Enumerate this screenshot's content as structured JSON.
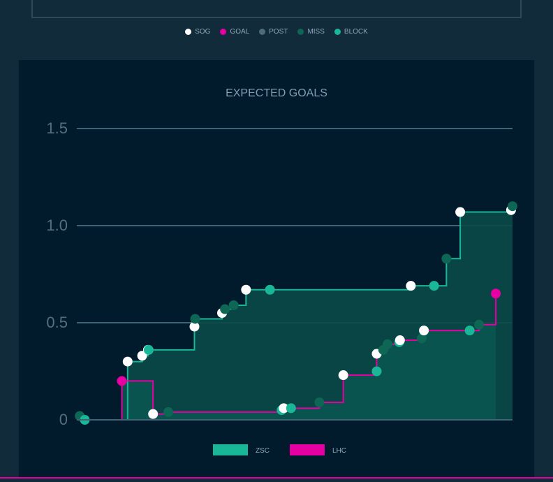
{
  "shot_legend": [
    {
      "label": "SOG",
      "color": "#ffffff"
    },
    {
      "label": "GOAL",
      "color": "#e600a3"
    },
    {
      "label": "POST",
      "color": "#4e6b7a"
    },
    {
      "label": "MISS",
      "color": "#0e6655"
    },
    {
      "label": "BLOCK",
      "color": "#19b797"
    }
  ],
  "chart_data": {
    "type": "line",
    "title": "EXPECTED GOALS",
    "xlabel": "",
    "ylabel": "",
    "xlim": [
      0,
      60
    ],
    "ylim": [
      0,
      1.5
    ],
    "yticks": [
      0,
      0.5,
      1.0,
      1.5
    ],
    "ytick_labels": [
      "0",
      "0.5",
      "1.0",
      "1.5"
    ],
    "grid": true,
    "series": [
      {
        "name": "ZSC",
        "color": "#19b797",
        "fill": "#0a4a48",
        "events": [
          {
            "t": 0.4,
            "xg": 0.02,
            "type": "MISS"
          },
          {
            "t": 1.1,
            "xg": 0.0,
            "type": "BLOCK"
          },
          {
            "t": 7.0,
            "xg": 0.3,
            "type": "SOG"
          },
          {
            "t": 9.0,
            "xg": 0.33,
            "type": "SOG"
          },
          {
            "t": 9.8,
            "xg": 0.36,
            "type": "SOG"
          },
          {
            "t": 9.9,
            "xg": 0.36,
            "type": "BLOCK"
          },
          {
            "t": 16.2,
            "xg": 0.48,
            "type": "SOG"
          },
          {
            "t": 16.3,
            "xg": 0.52,
            "type": "MISS"
          },
          {
            "t": 20.0,
            "xg": 0.55,
            "type": "SOG"
          },
          {
            "t": 20.4,
            "xg": 0.57,
            "type": "MISS"
          },
          {
            "t": 21.6,
            "xg": 0.59,
            "type": "MISS"
          },
          {
            "t": 23.3,
            "xg": 0.67,
            "type": "SOG"
          },
          {
            "t": 26.6,
            "xg": 0.67,
            "type": "BLOCK"
          },
          {
            "t": 46.0,
            "xg": 0.69,
            "type": "SOG"
          },
          {
            "t": 49.2,
            "xg": 0.69,
            "type": "BLOCK"
          },
          {
            "t": 50.9,
            "xg": 0.83,
            "type": "MISS"
          },
          {
            "t": 52.8,
            "xg": 1.07,
            "type": "SOG"
          },
          {
            "t": 59.8,
            "xg": 1.08,
            "type": "SOG"
          },
          {
            "t": 60.0,
            "xg": 1.1,
            "type": "MISS"
          }
        ]
      },
      {
        "name": "LHC",
        "color": "#e600a3",
        "fill": "#0b5550",
        "events": [
          {
            "t": 6.2,
            "xg": 0.2,
            "type": "GOAL"
          },
          {
            "t": 10.5,
            "xg": 0.03,
            "type": "SOG"
          },
          {
            "t": 12.6,
            "xg": 0.04,
            "type": "MISS"
          },
          {
            "t": 28.2,
            "xg": 0.05,
            "type": "BLOCK"
          },
          {
            "t": 28.5,
            "xg": 0.06,
            "type": "SOG"
          },
          {
            "t": 29.5,
            "xg": 0.06,
            "type": "BLOCK"
          },
          {
            "t": 33.4,
            "xg": 0.09,
            "type": "MISS"
          },
          {
            "t": 36.7,
            "xg": 0.23,
            "type": "SOG"
          },
          {
            "t": 41.3,
            "xg": 0.25,
            "type": "BLOCK"
          },
          {
            "t": 41.3,
            "xg": 0.34,
            "type": "SOG"
          },
          {
            "t": 42.2,
            "xg": 0.36,
            "type": "MISS"
          },
          {
            "t": 42.8,
            "xg": 0.39,
            "type": "MISS"
          },
          {
            "t": 44.4,
            "xg": 0.4,
            "type": "BLOCK"
          },
          {
            "t": 44.5,
            "xg": 0.41,
            "type": "SOG"
          },
          {
            "t": 47.5,
            "xg": 0.42,
            "type": "MISS"
          },
          {
            "t": 47.8,
            "xg": 0.46,
            "type": "SOG"
          },
          {
            "t": 54.1,
            "xg": 0.46,
            "type": "BLOCK"
          },
          {
            "t": 55.4,
            "xg": 0.49,
            "type": "MISS"
          },
          {
            "t": 57.7,
            "xg": 0.65,
            "type": "GOAL"
          }
        ]
      }
    ]
  }
}
